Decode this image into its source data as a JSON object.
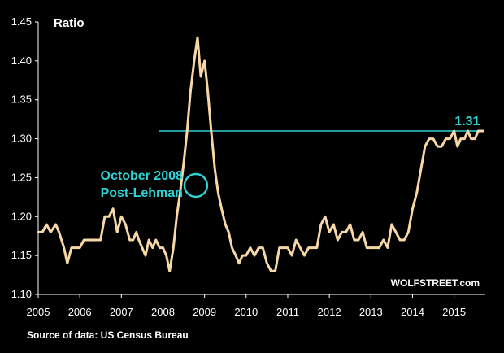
{
  "chart_data": {
    "type": "line",
    "ylabel": "Ratio",
    "ylim": [
      1.1,
      1.45
    ],
    "yticks": [
      "1.10",
      "1.15",
      "1.20",
      "1.25",
      "1.30",
      "1.35",
      "1.40",
      "1.45"
    ],
    "xlim": [
      2005,
      2015.75
    ],
    "xticks": [
      "2005",
      "2006",
      "2007",
      "2008",
      "2009",
      "2010",
      "2011",
      "2012",
      "2013",
      "2014",
      "2015"
    ],
    "grid": false,
    "source": "Source of data: US Census Bureau",
    "watermark": "WOLFSTREET.com",
    "colors": {
      "line": "#f7d7a6",
      "accent": "#2ed3d3",
      "background": "#000000",
      "axis": "#ffffff"
    },
    "reference_line": {
      "value": 1.31,
      "label": "1.31",
      "from_x": 2007.9
    },
    "annotation": {
      "lines": [
        "October 2008",
        "Post-Lehman"
      ],
      "point": {
        "x": 2008.79,
        "y": 1.24
      }
    },
    "series": [
      {
        "x": [
          2005.0,
          2005.1,
          2005.2,
          2005.3,
          2005.42,
          2005.5,
          2005.62,
          2005.7,
          2005.8,
          2005.9,
          2006.0,
          2006.1,
          2006.2,
          2006.3,
          2006.4,
          2006.5,
          2006.6,
          2006.7,
          2006.8,
          2006.9,
          2007.0,
          2007.1,
          2007.2,
          2007.28,
          2007.36,
          2007.42,
          2007.5,
          2007.58,
          2007.66,
          2007.75,
          2007.83,
          2007.92,
          2008.0,
          2008.08,
          2008.16,
          2008.25,
          2008.33,
          2008.41,
          2008.5,
          2008.58,
          2008.66,
          2008.75,
          2008.83,
          2008.91,
          2009.0,
          2009.08,
          2009.16,
          2009.25,
          2009.33,
          2009.41,
          2009.5,
          2009.58,
          2009.66,
          2009.75,
          2009.83,
          2009.91,
          2010.0,
          2010.1,
          2010.2,
          2010.3,
          2010.4,
          2010.5,
          2010.6,
          2010.7,
          2010.8,
          2010.9,
          2011.0,
          2011.1,
          2011.2,
          2011.3,
          2011.4,
          2011.5,
          2011.6,
          2011.7,
          2011.8,
          2011.9,
          2012.0,
          2012.1,
          2012.2,
          2012.3,
          2012.4,
          2012.5,
          2012.6,
          2012.7,
          2012.8,
          2012.9,
          2013.0,
          2013.1,
          2013.2,
          2013.3,
          2013.4,
          2013.5,
          2013.6,
          2013.7,
          2013.8,
          2013.9,
          2014.0,
          2014.1,
          2014.2,
          2014.3,
          2014.4,
          2014.5,
          2014.6,
          2014.7,
          2014.8,
          2014.9,
          2015.0,
          2015.08,
          2015.16,
          2015.25,
          2015.33,
          2015.41,
          2015.5,
          2015.58,
          2015.66,
          2015.7
        ],
        "values": [
          1.18,
          1.18,
          1.19,
          1.18,
          1.19,
          1.18,
          1.16,
          1.14,
          1.16,
          1.16,
          1.16,
          1.17,
          1.17,
          1.17,
          1.17,
          1.17,
          1.2,
          1.2,
          1.21,
          1.18,
          1.2,
          1.19,
          1.17,
          1.17,
          1.18,
          1.17,
          1.16,
          1.15,
          1.17,
          1.16,
          1.17,
          1.16,
          1.16,
          1.15,
          1.13,
          1.16,
          1.2,
          1.23,
          1.27,
          1.31,
          1.36,
          1.4,
          1.43,
          1.38,
          1.4,
          1.36,
          1.31,
          1.26,
          1.23,
          1.21,
          1.19,
          1.18,
          1.16,
          1.15,
          1.14,
          1.15,
          1.15,
          1.16,
          1.15,
          1.16,
          1.16,
          1.14,
          1.13,
          1.13,
          1.16,
          1.16,
          1.16,
          1.15,
          1.17,
          1.16,
          1.15,
          1.16,
          1.16,
          1.16,
          1.19,
          1.2,
          1.18,
          1.19,
          1.17,
          1.18,
          1.18,
          1.19,
          1.17,
          1.17,
          1.18,
          1.16,
          1.16,
          1.16,
          1.16,
          1.17,
          1.16,
          1.19,
          1.18,
          1.17,
          1.17,
          1.18,
          1.21,
          1.23,
          1.26,
          1.29,
          1.3,
          1.3,
          1.29,
          1.29,
          1.3,
          1.3,
          1.31,
          1.29,
          1.3,
          1.3,
          1.31,
          1.3,
          1.3,
          1.31,
          1.31,
          1.31
        ]
      }
    ]
  }
}
